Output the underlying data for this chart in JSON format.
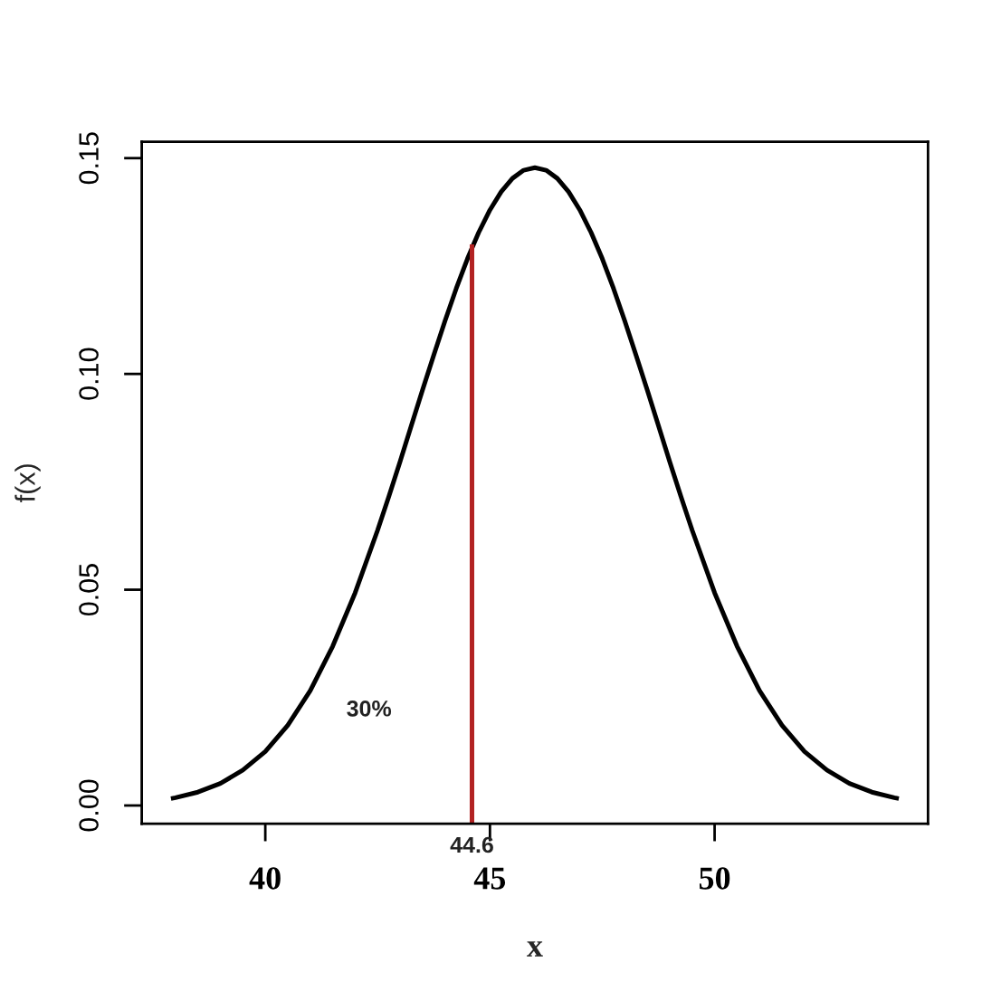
{
  "chart_data": {
    "type": "line",
    "xlabel": "x",
    "ylabel": "f(x)",
    "series": [
      {
        "color": "#000000",
        "x": [
          37.9,
          38,
          38.5,
          39,
          39.5,
          40,
          40.5,
          41,
          41.5,
          42,
          42.5,
          42.75,
          43,
          43.25,
          43.5,
          43.75,
          44,
          44.25,
          44.5,
          44.75,
          45,
          45.25,
          45.5,
          45.75,
          46,
          46.25,
          46.5,
          46.75,
          47,
          47.25,
          47.5,
          47.75,
          48,
          48.25,
          48.5,
          48.75,
          49,
          49.25,
          49.5,
          50,
          50.5,
          51,
          51.5,
          52,
          52.5,
          53,
          53.5,
          54,
          54.1
        ],
        "values": [
          0.0016,
          0.0018,
          0.0031,
          0.0051,
          0.0082,
          0.0125,
          0.0186,
          0.0266,
          0.0369,
          0.0493,
          0.0638,
          0.0716,
          0.0797,
          0.088,
          0.0963,
          0.1044,
          0.1123,
          0.1198,
          0.1267,
          0.1328,
          0.138,
          0.1422,
          0.1453,
          0.1472,
          0.1478,
          0.1472,
          0.1453,
          0.1422,
          0.138,
          0.1328,
          0.1267,
          0.1198,
          0.1123,
          0.1044,
          0.0963,
          0.088,
          0.0797,
          0.0716,
          0.0638,
          0.0493,
          0.0369,
          0.0266,
          0.0186,
          0.0125,
          0.0082,
          0.0051,
          0.0031,
          0.0018,
          0.0016
        ]
      },
      {
        "color": "#b22222",
        "x": [
          44.6,
          44.6
        ],
        "values": [
          -0.0042,
          0.13
        ]
      }
    ],
    "annotations": [
      "30%",
      "44.6"
    ],
    "xlim": [
      37.25,
      54.75
    ],
    "ylim": [
      -0.0042,
      0.1538
    ],
    "xticks": [
      40,
      45,
      50
    ],
    "yticks": [
      {
        "value": 0,
        "label": "0.00"
      },
      0.05,
      {
        "value": 0.1,
        "label": "0.10"
      },
      0.15
    ]
  }
}
